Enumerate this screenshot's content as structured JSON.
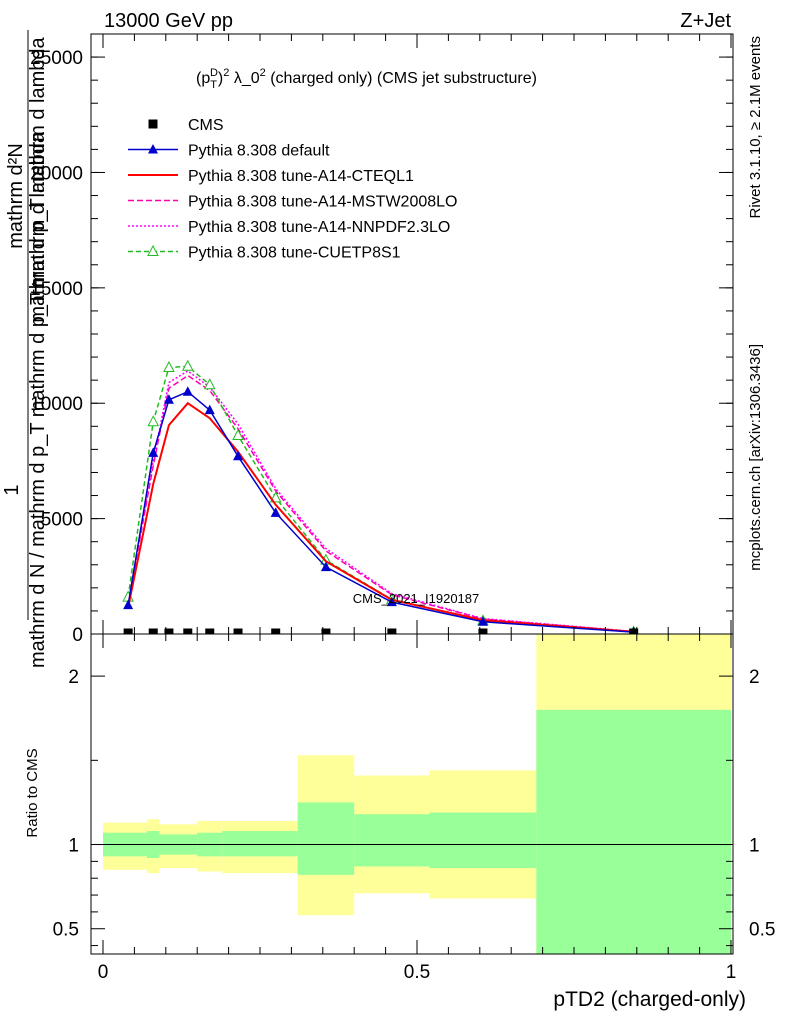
{
  "header": {
    "left": "13000 GeV pp",
    "right": "Z+Jet"
  },
  "side_labels": {
    "rivet": "Rivet 3.1.10, ≥ 2.1M events",
    "mcplots": "mcplots.cern.ch [arXiv:1306.3436]"
  },
  "watermark": "CMS_2021_I1920187",
  "colors": {
    "cms": "#000000",
    "default": "#0000cc",
    "cteql1": "#ff0000",
    "mstw": "#ff00aa",
    "nnpdf": "#ff00ff",
    "cuetp8s1": "#22bb22",
    "band_inner": "#99ff99",
    "band_outer": "#ffff99"
  },
  "chart_data": [
    {
      "type": "line",
      "title": "(p_T^D)^2 λ_0^2 (charged only) (CMS jet substructure)",
      "title_parts": {
        "p": "(p",
        "sub": "T",
        "sup": "D",
        "close": ")",
        "sq": "2",
        "lam": " λ_0",
        "rest": " (charged only) (CMS jet substructure)"
      },
      "ylabel_top": "mathrm d²N",
      "ylabel_mid": "mathrm d p_T mathrm d lambda",
      "ylabel_one": "1",
      "ylabel_bottom": "mathrm d N / mathrm d p_T mathrm d p_T mathrm d lambda",
      "xlim": [
        0,
        1
      ],
      "ylim": [
        0,
        26000
      ],
      "yticks": [
        0,
        5000,
        10000,
        15000,
        20000,
        25000
      ],
      "ytick_labels": [
        "0",
        "5000",
        "10000",
        "15000",
        "20000",
        "25000"
      ],
      "legend_position": "top-left",
      "x": [
        0.04,
        0.08,
        0.105,
        0.135,
        0.17,
        0.215,
        0.275,
        0.355,
        0.46,
        0.605,
        0.845
      ],
      "series": [
        {
          "name": "CMS",
          "key": "cms",
          "marker": "square",
          "values": [
            0,
            0,
            0,
            0,
            0,
            0,
            0,
            0,
            0,
            0,
            0
          ]
        },
        {
          "name": "Pythia 8.308 default",
          "key": "default",
          "marker": "triangle",
          "dash": "",
          "values": [
            1250,
            7850,
            10150,
            10500,
            9700,
            7700,
            5250,
            2900,
            1380,
            530,
            80
          ]
        },
        {
          "name": "Pythia 8.308 tune-A14-CTEQL1",
          "key": "cteql1",
          "marker": "none",
          "dash": "",
          "values": [
            1150,
            6500,
            9050,
            10000,
            9350,
            7900,
            5600,
            3150,
            1480,
            600,
            100
          ]
        },
        {
          "name": "Pythia 8.308 tune-A14-MSTW2008LO",
          "key": "mstw",
          "marker": "none",
          "dash": "6,3",
          "values": [
            1300,
            7300,
            10650,
            11200,
            10550,
            8900,
            6200,
            3600,
            1700,
            650,
            100
          ]
        },
        {
          "name": "Pythia 8.308 tune-A14-NNPDF2.3LO",
          "key": "nnpdf",
          "marker": "none",
          "dash": "2,2",
          "values": [
            1350,
            7500,
            10900,
            11400,
            10700,
            9100,
            6300,
            3700,
            1750,
            670,
            110
          ]
        },
        {
          "name": "Pythia 8.308 tune-CUETP8S1",
          "key": "cuetp8s1",
          "marker": "open-triangle",
          "dash": "5,3",
          "values": [
            1600,
            9200,
            11550,
            11600,
            10800,
            8600,
            5900,
            3200,
            1500,
            570,
            90
          ]
        }
      ]
    },
    {
      "type": "area",
      "ylabel": "Ratio to CMS",
      "xlabel": "pTD2 (charged-only)",
      "xlim": [
        0,
        1
      ],
      "ylim": [
        0.35,
        2.25
      ],
      "xticks": [
        0,
        0.5,
        1
      ],
      "xtick_labels": [
        "0",
        "0.5",
        "1"
      ],
      "yticks": [
        0.5,
        1,
        2
      ],
      "ytick_labels": [
        "0.5",
        "1",
        "2"
      ],
      "bins": [
        {
          "lo": 0.0,
          "hi": 0.07,
          "inner_lo": 0.93,
          "inner_hi": 1.07,
          "outer_lo": 0.85,
          "outer_hi": 1.13
        },
        {
          "lo": 0.07,
          "hi": 0.09,
          "inner_lo": 0.92,
          "inner_hi": 1.08,
          "outer_lo": 0.83,
          "outer_hi": 1.15
        },
        {
          "lo": 0.09,
          "hi": 0.15,
          "inner_lo": 0.94,
          "inner_hi": 1.06,
          "outer_lo": 0.86,
          "outer_hi": 1.12
        },
        {
          "lo": 0.15,
          "hi": 0.19,
          "inner_lo": 0.93,
          "inner_hi": 1.07,
          "outer_lo": 0.84,
          "outer_hi": 1.14
        },
        {
          "lo": 0.19,
          "hi": 0.31,
          "inner_lo": 0.93,
          "inner_hi": 1.08,
          "outer_lo": 0.83,
          "outer_hi": 1.14
        },
        {
          "lo": 0.31,
          "hi": 0.4,
          "inner_lo": 0.82,
          "inner_hi": 1.25,
          "outer_lo": 0.58,
          "outer_hi": 1.53
        },
        {
          "lo": 0.4,
          "hi": 0.52,
          "inner_lo": 0.87,
          "inner_hi": 1.18,
          "outer_lo": 0.71,
          "outer_hi": 1.41
        },
        {
          "lo": 0.52,
          "hi": 0.69,
          "inner_lo": 0.86,
          "inner_hi": 1.19,
          "outer_lo": 0.68,
          "outer_hi": 1.44
        },
        {
          "lo": 0.69,
          "hi": 1.0,
          "inner_lo": 0.25,
          "inner_hi": 1.8,
          "outer_lo": 0.25,
          "outer_hi": 2.5
        }
      ]
    }
  ]
}
